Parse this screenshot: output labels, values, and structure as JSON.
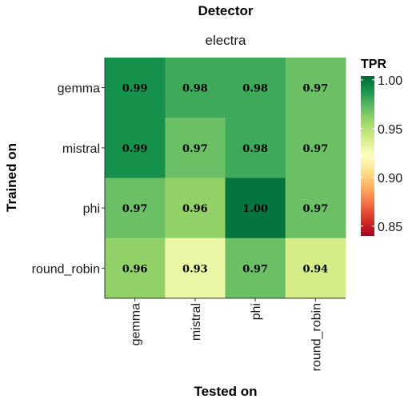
{
  "chart_data": {
    "type": "heatmap",
    "title": "Detector",
    "facet": "electra",
    "xlabel": "Tested on",
    "ylabel": "Trained on",
    "x_categories": [
      "gemma",
      "mistral",
      "phi",
      "round_robin"
    ],
    "y_categories": [
      "gemma",
      "mistral",
      "phi",
      "round_robin"
    ],
    "values": [
      [
        0.99,
        0.98,
        0.98,
        0.97
      ],
      [
        0.99,
        0.97,
        0.98,
        0.97
      ],
      [
        0.97,
        0.96,
        1.0,
        0.97
      ],
      [
        0.96,
        0.93,
        0.97,
        0.94
      ]
    ],
    "cell_labels": [
      [
        "0.99",
        "0.98",
        "0.98",
        "0.97"
      ],
      [
        "0.99",
        "0.97",
        "0.98",
        "0.97"
      ],
      [
        "0.97",
        "0.96",
        "1.00",
        "0.97"
      ],
      [
        "0.96",
        "0.93",
        "0.97",
        "0.94"
      ]
    ],
    "legend": {
      "title": "TPR",
      "range": [
        0.84,
        1.004
      ],
      "ticks": [
        0.85,
        0.9,
        0.95,
        1.0
      ],
      "tick_labels": [
        "0.85",
        "0.90",
        "0.95",
        "1.00"
      ],
      "palette": "RdYlGn",
      "colors": [
        "#a50026",
        "#d73027",
        "#f46d43",
        "#fdae61",
        "#fee08b",
        "#ffffbf",
        "#d9ef8b",
        "#a6d96a",
        "#66bd63",
        "#1a9850",
        "#006837"
      ]
    },
    "legend_position": "right",
    "grid": false
  }
}
